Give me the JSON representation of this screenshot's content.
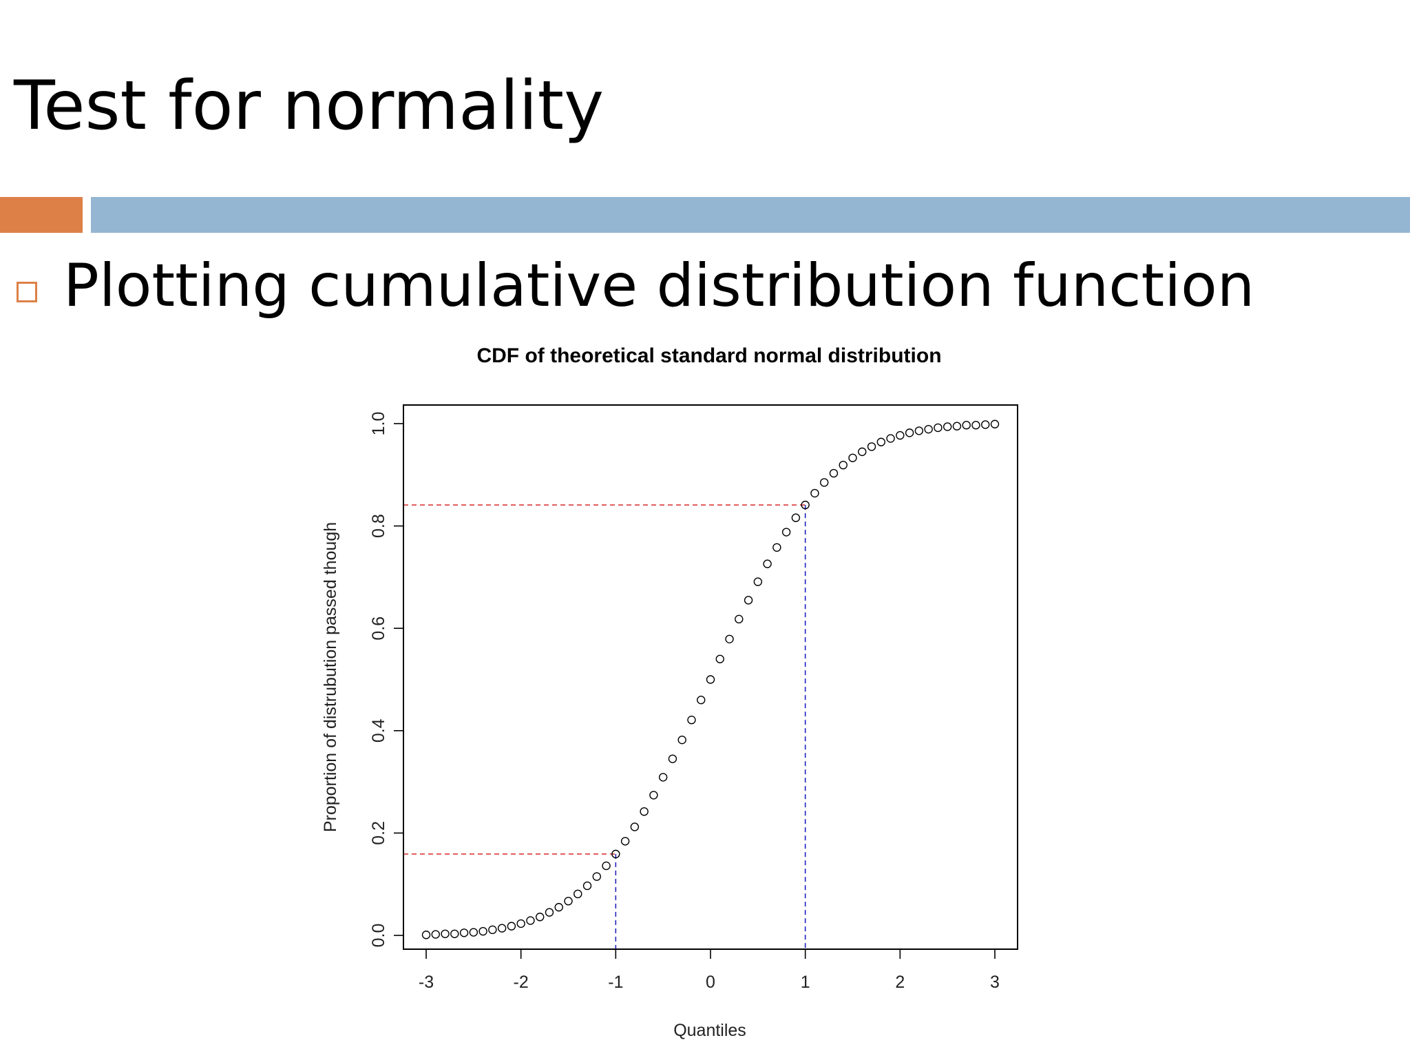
{
  "slide": {
    "title": "Test for normality",
    "bullet": "Plotting cumulative distribution function",
    "colors": {
      "accent_orange": "#dd8047",
      "accent_blue": "#94b6d2",
      "bullet_box": "#dd8047"
    }
  },
  "chart_data": {
    "type": "scatter",
    "title": "CDF of theoretical standard normal distribution",
    "xlabel": "Quantiles",
    "ylabel": "Proportion of distrubution passed though",
    "xlim": [
      -3,
      3
    ],
    "ylim": [
      0,
      1
    ],
    "x_ticks": [
      -3,
      -2,
      -1,
      0,
      1,
      2,
      3
    ],
    "x_tick_labels": [
      "-3",
      "-2",
      "-1",
      "0",
      "1",
      "2",
      "3"
    ],
    "y_ticks": [
      0,
      0.2,
      0.4,
      0.6,
      0.8,
      1
    ],
    "y_tick_labels": [
      "0.0",
      "0.2",
      "0.4",
      "0.6",
      "0.8",
      "1.0"
    ],
    "grid": false,
    "marker": "open-circle",
    "series": [
      {
        "x": [
          -3.0,
          -2.9,
          -2.8,
          -2.7,
          -2.6,
          -2.5,
          -2.4,
          -2.3,
          -2.2,
          -2.1,
          -2.0,
          -1.9,
          -1.8,
          -1.7,
          -1.6,
          -1.5,
          -1.4,
          -1.3,
          -1.2,
          -1.1,
          -1.0,
          -0.9,
          -0.8,
          -0.7,
          -0.6,
          -0.5,
          -0.4,
          -0.3,
          -0.2,
          -0.1,
          0.0,
          0.1,
          0.2,
          0.3,
          0.4,
          0.5,
          0.6,
          0.7,
          0.8,
          0.9,
          1.0,
          1.1,
          1.2,
          1.3,
          1.4,
          1.5,
          1.6,
          1.7,
          1.8,
          1.9,
          2.0,
          2.1,
          2.2,
          2.3,
          2.4,
          2.5,
          2.6,
          2.7,
          2.8,
          2.9,
          3.0
        ],
        "y": [
          0.001,
          0.002,
          0.003,
          0.003,
          0.005,
          0.006,
          0.008,
          0.011,
          0.014,
          0.018,
          0.023,
          0.029,
          0.036,
          0.045,
          0.055,
          0.067,
          0.081,
          0.097,
          0.115,
          0.136,
          0.159,
          0.184,
          0.212,
          0.242,
          0.274,
          0.309,
          0.345,
          0.382,
          0.421,
          0.46,
          0.5,
          0.54,
          0.579,
          0.618,
          0.655,
          0.691,
          0.726,
          0.758,
          0.788,
          0.816,
          0.841,
          0.864,
          0.885,
          0.903,
          0.919,
          0.933,
          0.945,
          0.955,
          0.964,
          0.971,
          0.977,
          0.982,
          0.986,
          0.989,
          0.992,
          0.994,
          0.995,
          0.997,
          0.997,
          0.998,
          0.999
        ]
      }
    ],
    "reference_lines": [
      {
        "x": -1,
        "y": 0.159,
        "horizontal_color": "#d62728",
        "vertical_color": "#1f1fbf",
        "style": "dashed"
      },
      {
        "x": 1,
        "y": 0.841,
        "horizontal_color": "#d62728",
        "vertical_color": "#1f1fbf",
        "style": "dashed"
      }
    ]
  }
}
